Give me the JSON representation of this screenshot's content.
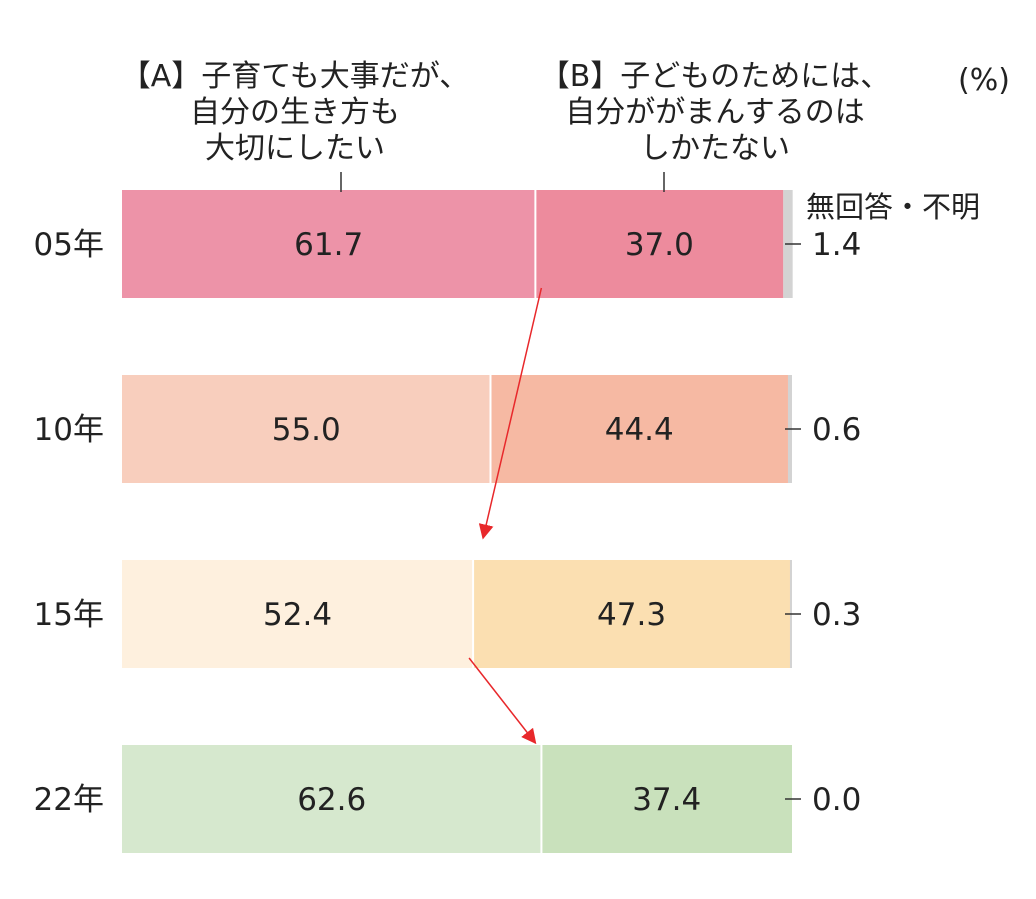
{
  "chart_data": {
    "type": "bar",
    "stacked": true,
    "orientation": "horizontal",
    "unit": "(%)",
    "categories": [
      "05年",
      "10年",
      "15年",
      "22年"
    ],
    "series": [
      {
        "name": "【A】子育ても大事だが、自分の生き方も大切にしたい",
        "name_lines": [
          "【A】子育ても大事だが、",
          "自分の生き方も",
          "大切にしたい"
        ],
        "values": [
          61.7,
          55.0,
          52.4,
          62.6
        ],
        "labels": [
          "61.7",
          "55.0",
          "52.4",
          "62.6"
        ]
      },
      {
        "name": "【B】子どものためには、自分ががまんするのはしかたない",
        "name_lines": [
          "【B】子どものためには、",
          "自分ががまんするのは",
          "しかたない"
        ],
        "values": [
          37.0,
          44.4,
          47.3,
          37.4
        ],
        "labels": [
          "37.0",
          "44.4",
          "47.3",
          "37.4"
        ]
      },
      {
        "name": "無回答・不明",
        "values": [
          1.4,
          0.6,
          0.3,
          0.0
        ],
        "labels": [
          "1.4",
          "0.6",
          "0.3",
          "0.0"
        ]
      }
    ],
    "colors": {
      "a": [
        "#ed93a8",
        "#f8cebd",
        "#fef0de",
        "#d6e8ce"
      ],
      "b": [
        "#ed8b9d",
        "#f6b9a3",
        "#fbdfb1",
        "#c9e1bc"
      ],
      "na": "#d3d3d3",
      "arrow": "#e8282b"
    },
    "xlim": [
      0,
      100
    ],
    "grid": false
  }
}
